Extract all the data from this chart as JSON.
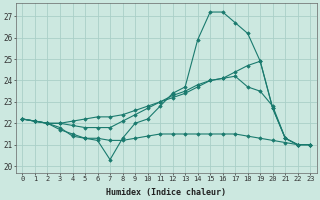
{
  "bg_color": "#cce8e0",
  "grid_color": "#aacfc8",
  "line_color": "#1a7a6e",
  "marker_color": "#1a7a6e",
  "xlabel": "Humidex (Indice chaleur)",
  "xlim": [
    -0.5,
    23.5
  ],
  "ylim": [
    19.7,
    27.6
  ],
  "yticks": [
    20,
    21,
    22,
    23,
    24,
    25,
    26,
    27
  ],
  "xticks": [
    0,
    1,
    2,
    3,
    4,
    5,
    6,
    7,
    8,
    9,
    10,
    11,
    12,
    13,
    14,
    15,
    16,
    17,
    18,
    19,
    20,
    21,
    22,
    23
  ],
  "series": [
    [
      22.2,
      22.1,
      22.0,
      21.7,
      21.5,
      21.3,
      21.2,
      20.3,
      21.3,
      22.0,
      22.2,
      22.8,
      23.4,
      23.7,
      25.9,
      27.2,
      27.2,
      26.7,
      26.2,
      24.9,
      22.7,
      21.3,
      21.0,
      21.0
    ],
    [
      22.2,
      22.1,
      22.0,
      21.8,
      21.4,
      21.3,
      21.3,
      21.2,
      21.2,
      21.3,
      21.4,
      21.5,
      21.5,
      21.5,
      21.5,
      21.5,
      21.5,
      21.5,
      21.4,
      21.3,
      21.2,
      21.1,
      21.0,
      21.0
    ],
    [
      22.2,
      22.1,
      22.0,
      22.0,
      21.9,
      21.8,
      21.8,
      21.8,
      22.1,
      22.4,
      22.7,
      23.0,
      23.3,
      23.5,
      23.8,
      24.0,
      24.1,
      24.2,
      23.7,
      23.5,
      22.8,
      21.3,
      21.0,
      21.0
    ],
    [
      22.2,
      22.1,
      22.0,
      22.0,
      22.1,
      22.2,
      22.3,
      22.3,
      22.4,
      22.6,
      22.8,
      23.0,
      23.2,
      23.4,
      23.7,
      24.0,
      24.1,
      24.4,
      24.7,
      24.9,
      22.7,
      21.3,
      21.0,
      21.0
    ]
  ]
}
